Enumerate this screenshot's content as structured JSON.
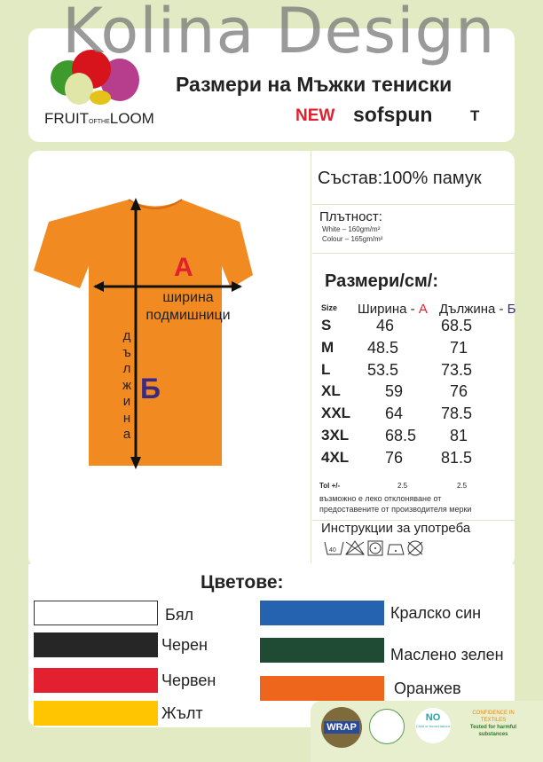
{
  "watermark": "Kolina Design",
  "header": {
    "brand": "FRUIT OF THE LOOM",
    "brand_main_1": "FRUIT",
    "brand_of": "OF",
    "brand_the": "THE",
    "brand_main_2": "LOOM",
    "title": "Размери на Мъжки тениски",
    "new_label": "NEW",
    "product": "sofspun",
    "product_suffix": "T",
    "reg": "®"
  },
  "diagram": {
    "label_a": "А",
    "label_b": "Б",
    "width_label_1": "ширина",
    "width_label_2": "подмишници",
    "length_letters": [
      "д",
      "ъ",
      "л",
      "ж",
      "и",
      "н",
      "а"
    ],
    "shirt_color": "#f28a22"
  },
  "composition": "Състав:100% памук",
  "density": {
    "label": "Плътност:",
    "white": "White – 160gm/m²",
    "colour": "Colour – 165gm/m²"
  },
  "sizes": {
    "title": "Размери/см/:",
    "headers": {
      "size": "Size",
      "width": "Ширина - ",
      "width_letter": "А",
      "length": "Дължина - ",
      "length_letter": "Б"
    },
    "rows": [
      {
        "size": "S",
        "width": "46",
        "length": "68.5"
      },
      {
        "size": "M",
        "width": "48.5",
        "length": "71"
      },
      {
        "size": "L",
        "width": "53.5",
        "length": "73.5"
      },
      {
        "size": "XL",
        "width": "59",
        "length": "76"
      },
      {
        "size": "XXL",
        "width": "64",
        "length": "78.5"
      },
      {
        "size": "3XL",
        "width": "68.5",
        "length": "81"
      },
      {
        "size": "4XL",
        "width": "76",
        "length": "81.5"
      }
    ],
    "tol_label": "Tol +/-",
    "tol_width": "2.5",
    "tol_length": "2.5",
    "note_1": "възможно е леко отклоняване от",
    "note_2": "предоставените от производителя мерки"
  },
  "care": {
    "title": "Инструкции за употреба",
    "wash_temp": "40",
    "icons": [
      "wash-40-icon",
      "no-bleach-icon",
      "tumble-dry-icon",
      "iron-low-icon",
      "no-dry-clean-icon"
    ]
  },
  "colors": {
    "title": "Цветове:",
    "items": [
      {
        "name": "Бял",
        "hex": "#ffffff"
      },
      {
        "name": "Черен",
        "hex": "#262626"
      },
      {
        "name": "Червен",
        "hex": "#e3202f"
      },
      {
        "name": "Жълт",
        "hex": "#ffc600"
      },
      {
        "name": "Кралско син",
        "hex": "#2563b0"
      },
      {
        "name": "Маслено зелен",
        "hex": "#1f4b35"
      },
      {
        "name": "Оранжев",
        "hex": "#ee661c"
      }
    ]
  },
  "certifications": {
    "wrap": "WRAP",
    "no_child": "NO",
    "no_child_sub": "Child or forced labour",
    "confidence": "CONFIDENCE IN TEXTILES",
    "confidence_sub": "Tested for harmful substances"
  }
}
